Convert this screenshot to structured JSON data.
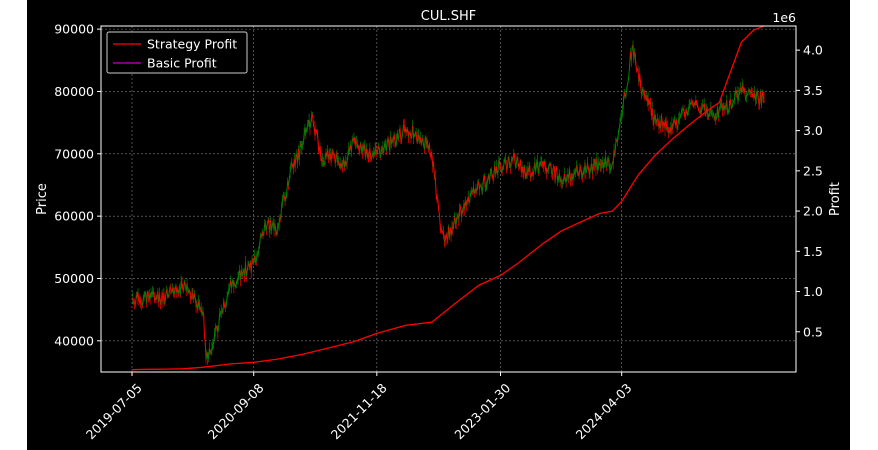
{
  "chart_data": {
    "type": "line",
    "title": "CUL.SHF",
    "xlabel": "",
    "ylabel": "Price",
    "y2label": "Profit",
    "y2_multiplier_label": "1e6",
    "grid": true,
    "legend_placement": "top-left",
    "x_tick_labels": [
      "2019-07-05",
      "2020-09-08",
      "2021-11-18",
      "2023-01-30",
      "2024-04-03"
    ],
    "y_ticks": [
      40000,
      50000,
      60000,
      70000,
      80000,
      90000
    ],
    "y_ticks_labels": [
      "40000",
      "50000",
      "60000",
      "70000",
      "80000",
      "90000"
    ],
    "ylim": [
      35000,
      90500
    ],
    "y2_ticks": [
      0.5,
      1.0,
      1.5,
      2.0,
      2.5,
      3.0,
      3.5,
      4.0
    ],
    "y2_ticks_labels": [
      "0.5",
      "1.0",
      "1.5",
      "2.0",
      "2.5",
      "3.0",
      "3.5",
      "4.0"
    ],
    "y2lim": [
      0.0,
      4.3
    ],
    "colors": {
      "background": "#000000",
      "up": "#008000",
      "down": "#ff0000",
      "strategy": "#ff0000",
      "basic": "#bf00bf",
      "grid": "#808080"
    },
    "price_series": {
      "name": "Price",
      "x": [
        "2019-07-05",
        "2019-09-01",
        "2019-11-01",
        "2020-01-01",
        "2020-01-25",
        "2020-02-20",
        "2020-03-15",
        "2020-03-23",
        "2020-05-01",
        "2020-06-15",
        "2020-08-01",
        "2020-09-08",
        "2020-10-20",
        "2020-12-01",
        "2021-01-15",
        "2021-02-25",
        "2021-04-01",
        "2021-05-10",
        "2021-06-15",
        "2021-07-20",
        "2021-09-01",
        "2021-10-15",
        "2021-11-18",
        "2022-01-15",
        "2022-03-01",
        "2022-04-15",
        "2022-06-01",
        "2022-07-01",
        "2022-07-15",
        "2022-09-01",
        "2022-11-01",
        "2023-01-30",
        "2023-03-15",
        "2023-05-01",
        "2023-07-01",
        "2023-09-01",
        "2023-11-01",
        "2024-01-15",
        "2024-03-01",
        "2024-04-03",
        "2024-05-10",
        "2024-06-15",
        "2024-08-01",
        "2024-10-01",
        "2024-12-01",
        "2025-02-01",
        "2025-04-01",
        "2025-06-01",
        "2025-07-15",
        "2025-08-20"
      ],
      "values": [
        46500,
        47000,
        47000,
        48500,
        48000,
        46000,
        44000,
        37000,
        42000,
        48500,
        51000,
        52500,
        58500,
        58000,
        67000,
        71000,
        76000,
        69000,
        70000,
        68000,
        72000,
        70000,
        70000,
        72000,
        74000,
        73000,
        70000,
        58000,
        56000,
        60000,
        64000,
        68000,
        69000,
        67000,
        68000,
        66000,
        67000,
        68500,
        68500,
        76000,
        87000,
        80000,
        75500,
        74000,
        78000,
        76500,
        77000,
        80000,
        79000,
        79000
      ]
    },
    "series": [
      {
        "name": "Strategy Profit",
        "x": [
          "2019-07-05",
          "2019-09-01",
          "2019-11-01",
          "2020-01-01",
          "2020-03-15",
          "2020-06-15",
          "2020-09-08",
          "2020-12-01",
          "2021-03-01",
          "2021-06-01",
          "2021-09-01",
          "2021-11-18",
          "2022-03-01",
          "2022-06-01",
          "2022-09-01",
          "2022-11-15",
          "2023-01-30",
          "2023-04-01",
          "2023-07-01",
          "2023-09-01",
          "2023-11-01",
          "2024-01-15",
          "2024-03-01",
          "2024-04-03",
          "2024-06-01",
          "2024-08-01",
          "2024-10-01",
          "2024-12-01",
          "2025-02-01",
          "2025-03-15",
          "2025-04-15",
          "2025-06-01",
          "2025-07-15",
          "2025-08-20"
        ],
        "values": [
          0.03,
          0.033,
          0.036,
          0.04,
          0.06,
          0.1,
          0.12,
          0.16,
          0.22,
          0.3,
          0.38,
          0.48,
          0.58,
          0.62,
          0.88,
          1.08,
          1.2,
          1.35,
          1.6,
          1.75,
          1.85,
          1.97,
          2.0,
          2.12,
          2.45,
          2.7,
          2.9,
          3.08,
          3.25,
          3.35,
          3.65,
          4.1,
          4.25,
          4.3
        ]
      },
      {
        "name": "Basic Profit",
        "x": [],
        "values": []
      }
    ]
  }
}
